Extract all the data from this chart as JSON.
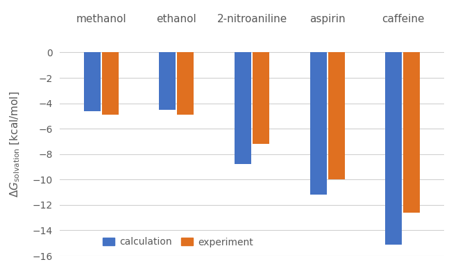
{
  "categories": [
    "methanol",
    "ethanol",
    "2-nitroaniline",
    "aspirin",
    "caffeine"
  ],
  "calculation": [
    -4.6,
    -4.5,
    -8.8,
    -11.2,
    -15.1
  ],
  "experiment": [
    -4.9,
    -4.9,
    -7.2,
    -10.0,
    -12.6
  ],
  "calc_color": "#4472C4",
  "exp_color": "#E07020",
  "ylim": [
    -16,
    1.5
  ],
  "yticks": [
    0,
    -2,
    -4,
    -6,
    -8,
    -10,
    -12,
    -14,
    -16
  ],
  "legend_calc": "calculation",
  "legend_exp": "experiment",
  "background_color": "#FFFFFF",
  "plot_bg_color": "#FFFFFF",
  "bar_width": 0.22,
  "label_fontsize": 11,
  "tick_fontsize": 10,
  "grid_color": "#D0D0D0",
  "text_color": "#595959"
}
